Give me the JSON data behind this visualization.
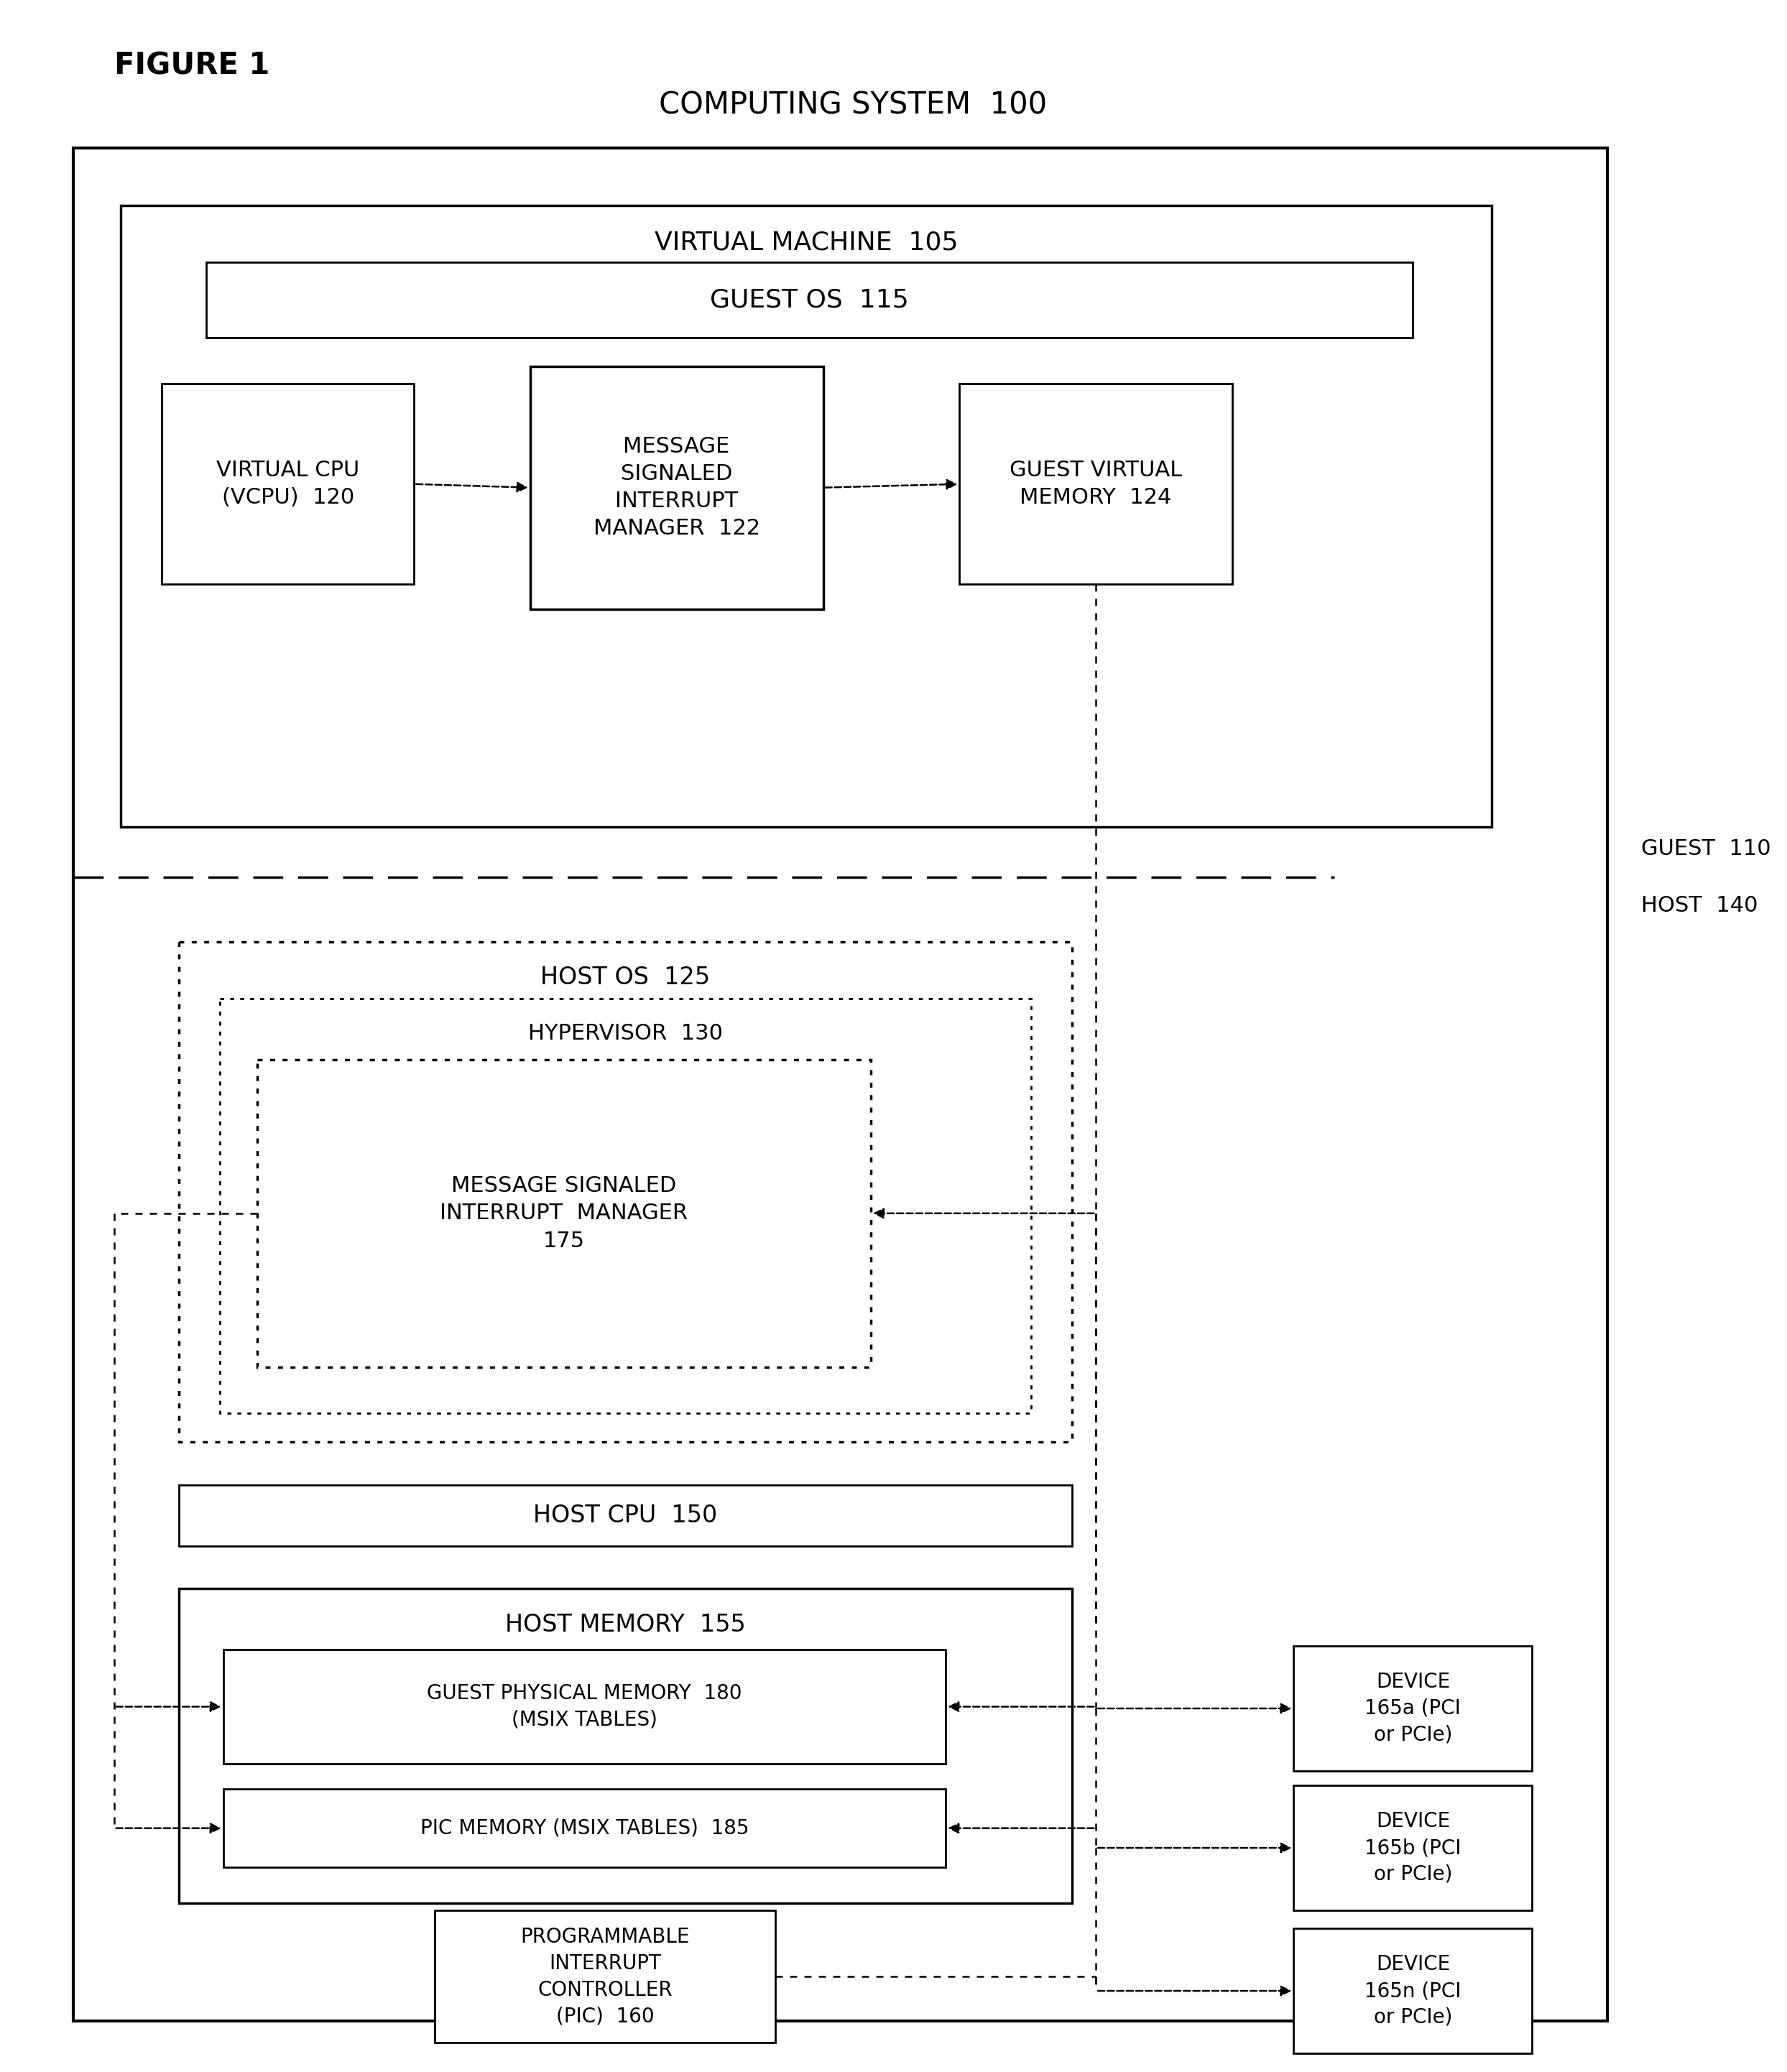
{
  "figure_label": "FIGURE 1",
  "title": "COMPUTING SYSTEM  100",
  "bg_color": "#ffffff",
  "fig_width": 24.87,
  "fig_height": 28.84,
  "font": "DejaVu Sans",
  "labels": {
    "virtual_machine": "VIRTUAL MACHINE  105",
    "guest_os": "GUEST OS  115",
    "virtual_cpu": "VIRTUAL CPU\n(VCPU)  120",
    "msim_guest": "MESSAGE\nSIGNALED\nINTERRUPT\nMANAGER  122",
    "guest_virtual_memory": "GUEST VIRTUAL\nMEMORY  124",
    "guest_boundary": "GUEST  110",
    "host_boundary": "HOST  140",
    "host_os": "HOST OS  125",
    "hypervisor": "HYPERVISOR  130",
    "msim_host": "MESSAGE SIGNALED\nINTERRUPT  MANAGER\n175",
    "host_cpu": "HOST CPU  150",
    "host_memory": "HOST MEMORY  155",
    "guest_physical_memory": "GUEST PHYSICAL MEMORY  180\n(MSIX TABLES)",
    "pic_memory": "PIC MEMORY (MSIX TABLES)  185",
    "pic": "PROGRAMMABLE\nINTERRUPT\nCONTROLLER\n(PIC)  160",
    "device_a": "DEVICE\n165a (PCI\nor PCIe)",
    "device_b": "DEVICE\n165b (PCI\nor PCIe)",
    "device_n": "DEVICE\n165n (PCI\nor PCIe)"
  }
}
